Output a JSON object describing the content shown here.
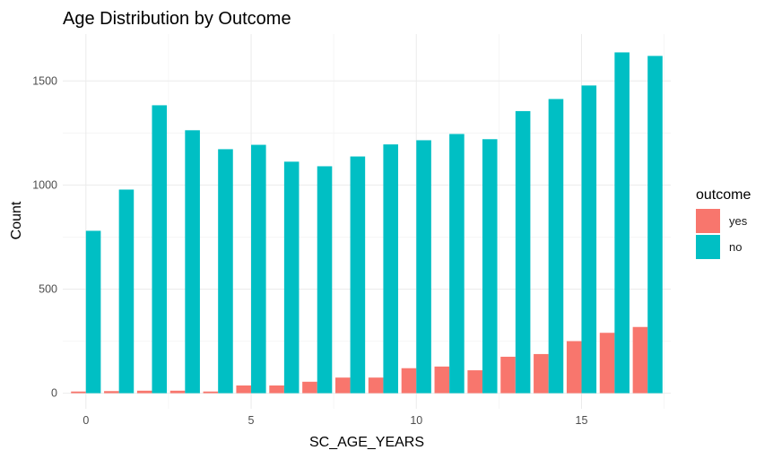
{
  "chart_data": {
    "type": "bar",
    "title": "Age Distribution by Outcome",
    "xlabel": "SC_AGE_YEARS",
    "ylabel": "Count",
    "x": [
      0,
      1,
      2,
      3,
      4,
      5,
      6,
      7,
      8,
      9,
      10,
      11,
      12,
      13,
      14,
      15,
      16,
      17
    ],
    "xticks": [
      0,
      5,
      10,
      15
    ],
    "yticks": [
      0,
      500,
      1000,
      1500
    ],
    "xlim": [
      -0.7,
      17.7
    ],
    "ylim": [
      -75,
      1725
    ],
    "grid": true,
    "legend": {
      "title": "outcome",
      "position": "right",
      "entries": [
        "yes",
        "no"
      ]
    },
    "series": [
      {
        "name": "yes",
        "color": "#F8766D",
        "values": [
          8,
          10,
          12,
          12,
          8,
          37,
          37,
          55,
          75,
          75,
          120,
          128,
          110,
          175,
          188,
          250,
          290,
          318
        ]
      },
      {
        "name": "no",
        "color": "#00BFC4",
        "values": [
          780,
          978,
          1383,
          1263,
          1172,
          1193,
          1112,
          1090,
          1137,
          1195,
          1215,
          1245,
          1220,
          1355,
          1413,
          1478,
          1637,
          1620
        ]
      }
    ]
  }
}
